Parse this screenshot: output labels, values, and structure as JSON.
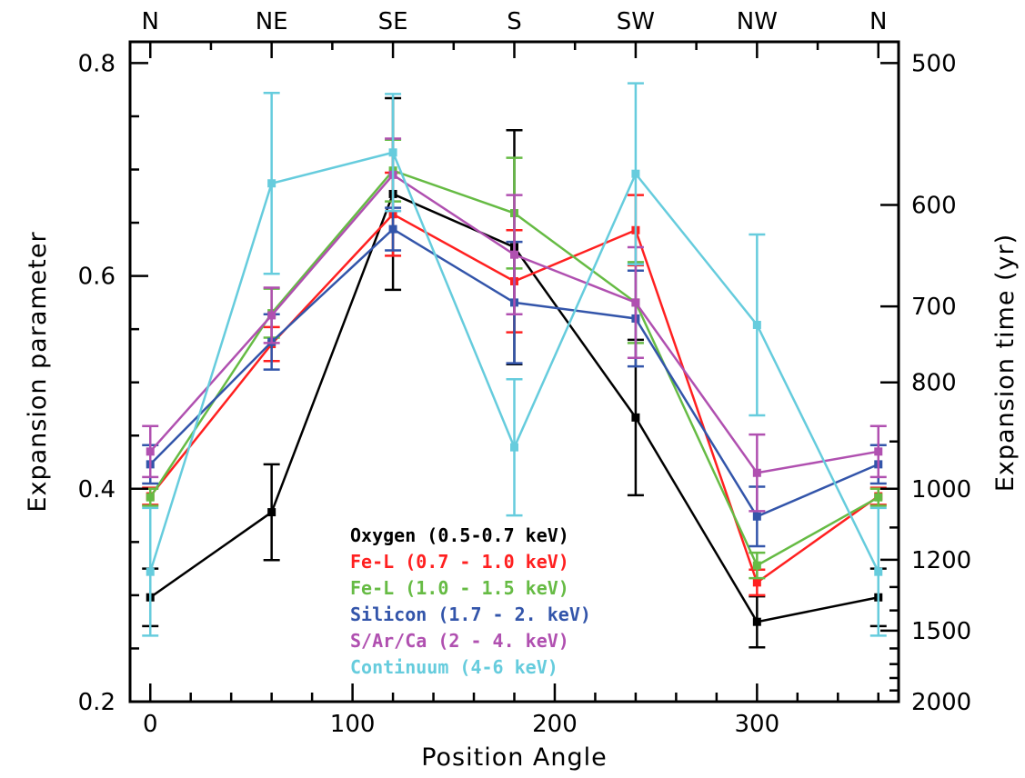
{
  "chart_data": {
    "type": "line",
    "xlabel": "Position Angle",
    "ylabel": "Expansion parameter",
    "y2label": "Expansion time (yr)",
    "xlim": [
      -10,
      370
    ],
    "ylim": [
      0.2,
      0.82
    ],
    "x_ticks": [
      0,
      100,
      200,
      300
    ],
    "y_ticks": [
      0.2,
      0.4,
      0.6,
      0.8
    ],
    "y_tick_labels": [
      "0.2",
      "0.4",
      "0.6",
      "0.8"
    ],
    "top_ticks": [
      {
        "x": 0,
        "label": "N"
      },
      {
        "x": 60,
        "label": "NE"
      },
      {
        "x": 120,
        "label": "SE"
      },
      {
        "x": 180,
        "label": "S"
      },
      {
        "x": 240,
        "label": "SW"
      },
      {
        "x": 300,
        "label": "NW"
      },
      {
        "x": 360,
        "label": "N"
      }
    ],
    "right_ticks": [
      {
        "time": 500,
        "label": "500"
      },
      {
        "time": 600,
        "label": "600"
      },
      {
        "time": 700,
        "label": "700"
      },
      {
        "time": 800,
        "label": "800"
      },
      {
        "time": 1000,
        "label": "1000"
      },
      {
        "time": 1200,
        "label": "1200"
      },
      {
        "time": 1500,
        "label": "1500"
      },
      {
        "time": 2000,
        "label": "2000"
      }
    ],
    "right_minor_ticks": [
      900,
      1100,
      1300,
      1400,
      1600,
      1700,
      1800,
      1900
    ],
    "grid": false,
    "legend_position": "bottom-center",
    "x": [
      0,
      60,
      120,
      180,
      240,
      300,
      360
    ],
    "series": [
      {
        "name": "Oxygen (0.5-0.7 keV)",
        "color": "#000000",
        "values": [
          0.298,
          0.378,
          0.677,
          0.627,
          0.467,
          0.275,
          0.298
        ],
        "errors": [
          0.027,
          0.045,
          0.09,
          0.11,
          0.073,
          0.024,
          0.027
        ]
      },
      {
        "name": "Fe-L (0.7 - 1.0 keV)",
        "color": "#ff2020",
        "values": [
          0.393,
          0.536,
          0.658,
          0.595,
          0.643,
          0.312,
          0.393
        ],
        "errors": [
          0.008,
          0.016,
          0.039,
          0.048,
          0.033,
          0.012,
          0.008
        ]
      },
      {
        "name": "Fe-L (1.0 - 1.5 keV)",
        "color": "#66bb44",
        "values": [
          0.392,
          0.565,
          0.699,
          0.659,
          0.575,
          0.328,
          0.392
        ],
        "errors": [
          0.008,
          0.023,
          0.029,
          0.052,
          0.038,
          0.012,
          0.008
        ]
      },
      {
        "name": "Silicon (1.7 - 2. keV)",
        "color": "#3355aa",
        "values": [
          0.423,
          0.538,
          0.644,
          0.575,
          0.56,
          0.374,
          0.423
        ],
        "errors": [
          0.018,
          0.026,
          0.02,
          0.057,
          0.045,
          0.028,
          0.018
        ]
      },
      {
        "name": "S/Ar/Ca (2 - 4. keV)",
        "color": "#b050b0",
        "values": [
          0.435,
          0.563,
          0.695,
          0.62,
          0.575,
          0.415,
          0.435
        ],
        "errors": [
          0.024,
          0.026,
          0.034,
          0.056,
          0.052,
          0.036,
          0.024
        ]
      },
      {
        "name": "Continuum (4-6 keV)",
        "color": "#66ccdd",
        "values": [
          0.322,
          0.687,
          0.716,
          0.439,
          0.696,
          0.554,
          0.322
        ],
        "errors": [
          0.06,
          0.085,
          0.055,
          0.064,
          0.085,
          0.085,
          0.06
        ]
      }
    ]
  }
}
